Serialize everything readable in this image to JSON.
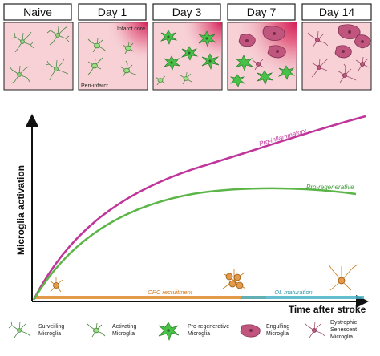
{
  "stages": [
    {
      "label": "Naive",
      "panel_note": ""
    },
    {
      "label": "Day 1",
      "panel_note": "Infarct core",
      "panel_note_2": "Peri-infarct"
    },
    {
      "label": "Day 3"
    },
    {
      "label": "Day 7"
    },
    {
      "label": "Day 14"
    }
  ],
  "colors": {
    "panel_bg": "#f7d1d6",
    "core_red": "#d41f5a",
    "surveilling": "#4c8a4a",
    "regenerative": "#3fbf3f",
    "engulfing": "#b23a6a",
    "dystrophic": "#a05070",
    "opc": "#d98a22",
    "proinflammatory_line": "#c0359a",
    "proregenerative_line": "#5bb547",
    "opc_line": "#e39a4a",
    "ol_line": "#4ab3c4"
  },
  "chart": {
    "y_axis_label": "Microglia activation",
    "x_axis_label": "Time after stroke",
    "curves": [
      {
        "name": "Pro-inflammatory"
      },
      {
        "name": "Pro-regenerative"
      }
    ],
    "phases": [
      {
        "name": "OPC recruitment"
      },
      {
        "name": "OL maturation"
      }
    ]
  },
  "legend": [
    {
      "line1": "Surveilling",
      "line2": "Microglia",
      "icon": "surveilling-microglia-icon"
    },
    {
      "line1": "Activating",
      "line2": "Microglia",
      "icon": "activating-microglia-icon"
    },
    {
      "line1": "Pro-regenerative",
      "line2": "Microglia",
      "icon": "pro-regenerative-microglia-icon"
    },
    {
      "line1": "Engulfing",
      "line2": "Microglia",
      "icon": "engulfing-microglia-icon"
    },
    {
      "line1": "Dystrophic",
      "line2": "Senescent",
      "line3": "Microglia",
      "icon": "dystrophic-senescent-microglia-icon"
    }
  ]
}
